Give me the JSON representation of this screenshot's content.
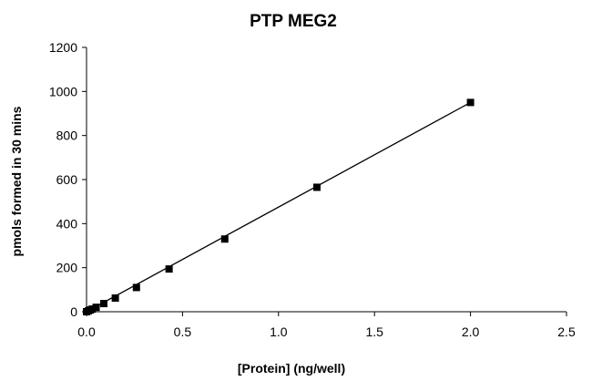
{
  "chart_data": {
    "type": "scatter",
    "title": "PTP MEG2",
    "xlabel": "[Protein] (ng/well)",
    "ylabel": "pmols formed in 30 mins",
    "xlim": [
      0,
      2.5
    ],
    "ylim": [
      0,
      1200
    ],
    "x_ticks": [
      0.0,
      0.5,
      1.0,
      1.5,
      2.0,
      2.5
    ],
    "x_tick_labels": [
      "0.0",
      "0.5",
      "1.0",
      "1.5",
      "2.0",
      "2.5"
    ],
    "y_ticks": [
      0,
      200,
      400,
      600,
      800,
      1000,
      1200
    ],
    "y_tick_labels": [
      "0",
      "200",
      "400",
      "600",
      "800",
      "1000",
      "1200"
    ],
    "grid": false,
    "marker": "square",
    "series": [
      {
        "name": "PTP MEG2",
        "x": [
          0.0,
          0.01,
          0.02,
          0.03,
          0.05,
          0.09,
          0.15,
          0.26,
          0.43,
          0.72,
          1.2,
          2.0
        ],
        "y": [
          0,
          4,
          8,
          12,
          20,
          37,
          62,
          110,
          194,
          330,
          565,
          950
        ]
      }
    ],
    "trendline": {
      "type": "linear",
      "x": [
        0.0,
        2.0
      ],
      "y": [
        0,
        950
      ]
    },
    "colors": {
      "marker": "#000000",
      "line": "#000000",
      "axis": "#000000"
    }
  }
}
